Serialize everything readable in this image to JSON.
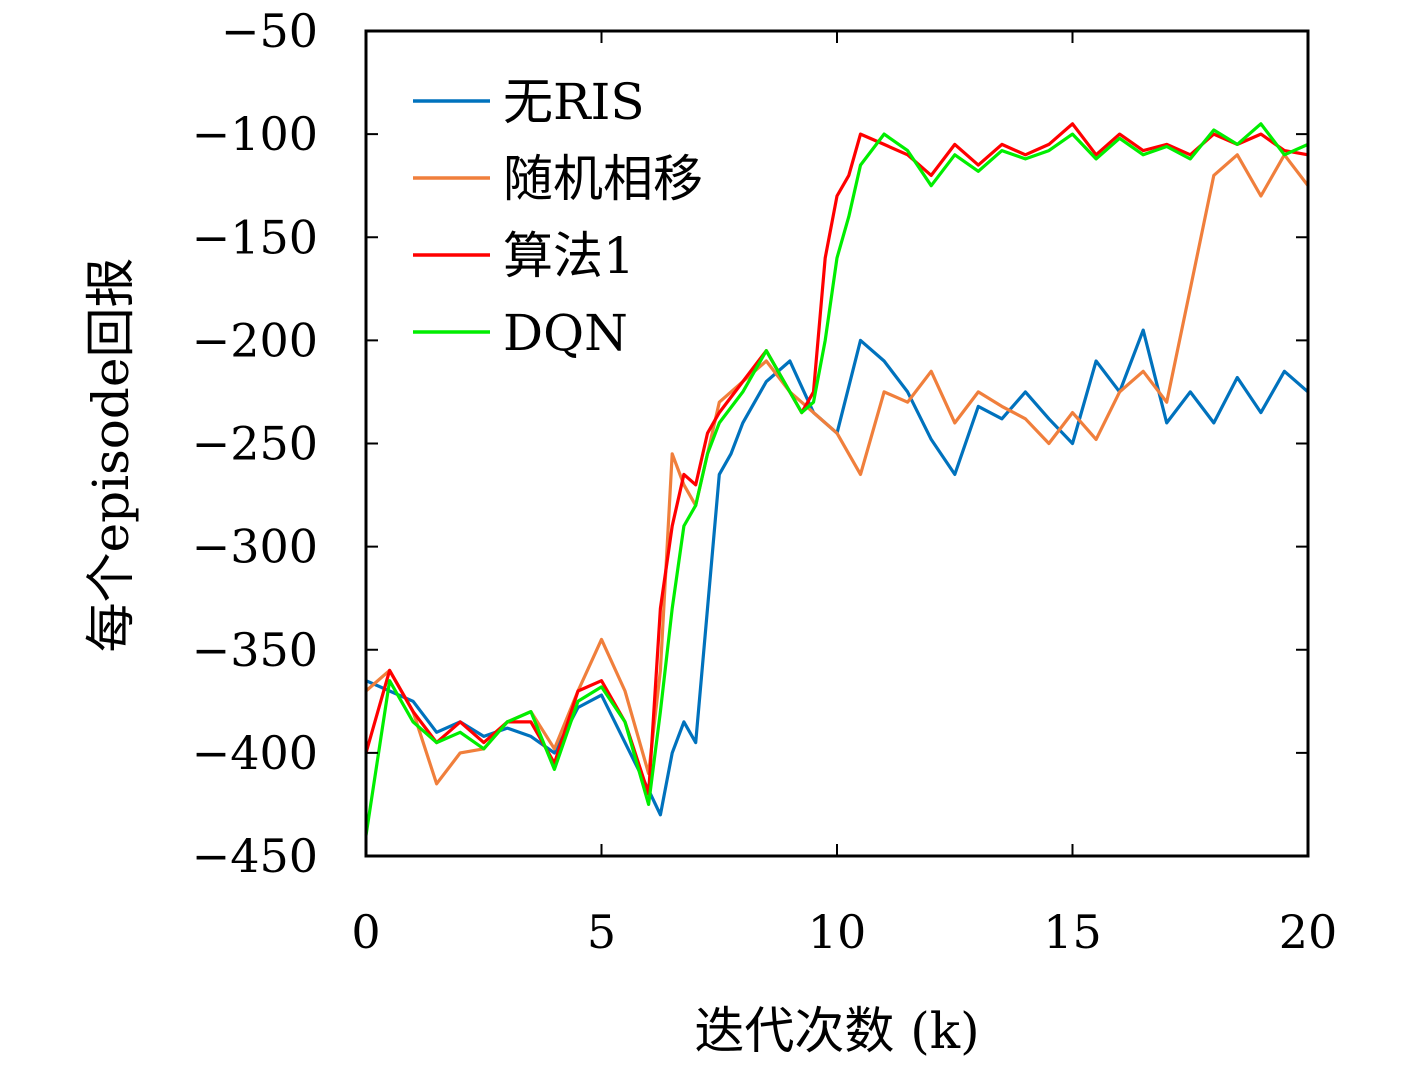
{
  "chart_data": {
    "type": "line",
    "xlabel": "迭代次数 (k)",
    "ylabel": "每个episode回报",
    "xlim": [
      0,
      20
    ],
    "ylim": [
      -450,
      -50
    ],
    "xticks": [
      0,
      5,
      10,
      15,
      20
    ],
    "yticks": [
      -50,
      -100,
      -150,
      -200,
      -250,
      -300,
      -350,
      -400,
      -450
    ],
    "xtick_labels": [
      "0",
      "5",
      "10",
      "15",
      "20"
    ],
    "ytick_labels": [
      "−50",
      "−100",
      "−150",
      "−200",
      "−250",
      "−300",
      "−350",
      "−400",
      "−450"
    ],
    "grid": false,
    "legend_position": "top-left",
    "series": [
      {
        "name": "无RIS",
        "color": "#0072BD",
        "x": [
          0,
          0.5,
          1,
          1.5,
          2,
          2.5,
          3,
          3.5,
          4,
          4.5,
          5,
          5.5,
          6,
          6.25,
          6.5,
          6.75,
          7,
          7.25,
          7.5,
          7.75,
          8,
          8.5,
          9,
          9.5,
          10,
          10.5,
          11,
          11.5,
          12,
          12.5,
          13,
          13.5,
          14,
          14.5,
          15,
          15.5,
          16,
          16.5,
          17,
          17.5,
          18,
          18.5,
          19,
          19.5,
          20
        ],
        "y": [
          -365,
          -370,
          -375,
          -390,
          -385,
          -392,
          -388,
          -392,
          -400,
          -378,
          -372,
          -395,
          -418,
          -430,
          -400,
          -385,
          -395,
          -330,
          -265,
          -255,
          -240,
          -220,
          -210,
          -235,
          -245,
          -200,
          -210,
          -225,
          -248,
          -265,
          -232,
          -238,
          -225,
          -238,
          -250,
          -210,
          -225,
          -195,
          -240,
          -225,
          -240,
          -218,
          -235,
          -215,
          -225
        ]
      },
      {
        "name": "随机相移",
        "color": "#F07F3C",
        "x": [
          0,
          0.5,
          1,
          1.5,
          2,
          2.5,
          3,
          3.5,
          4,
          4.5,
          5,
          5.5,
          6,
          6.25,
          6.5,
          6.75,
          7,
          7.5,
          8,
          8.5,
          9,
          9.5,
          10,
          10.5,
          11,
          11.5,
          12,
          12.5,
          13,
          13.5,
          14,
          14.5,
          15,
          15.5,
          16,
          16.5,
          17,
          17.5,
          18,
          18.5,
          19,
          19.5,
          20
        ],
        "y": [
          -370,
          -360,
          -380,
          -415,
          -400,
          -398,
          -385,
          -380,
          -398,
          -370,
          -345,
          -370,
          -410,
          -360,
          -255,
          -270,
          -280,
          -230,
          -220,
          -210,
          -225,
          -235,
          -245,
          -265,
          -225,
          -230,
          -215,
          -240,
          -225,
          -232,
          -238,
          -250,
          -235,
          -248,
          -225,
          -215,
          -230,
          -175,
          -120,
          -110,
          -130,
          -110,
          -125
        ]
      },
      {
        "name": "算法1",
        "color": "#FF0000",
        "x": [
          0,
          0.5,
          1,
          1.5,
          2,
          2.5,
          3,
          3.5,
          4,
          4.5,
          5,
          5.5,
          6,
          6.25,
          6.5,
          6.75,
          7,
          7.25,
          7.5,
          8,
          8.5,
          9,
          9.25,
          9.5,
          9.75,
          10,
          10.25,
          10.5,
          11,
          11.5,
          12,
          12.5,
          13,
          13.5,
          14,
          14.5,
          15,
          15.5,
          16,
          16.5,
          17,
          17.5,
          18,
          18.5,
          19,
          19.5,
          20
        ],
        "y": [
          -400,
          -360,
          -380,
          -395,
          -385,
          -395,
          -385,
          -385,
          -405,
          -370,
          -365,
          -385,
          -420,
          -330,
          -290,
          -265,
          -270,
          -245,
          -235,
          -220,
          -205,
          -225,
          -235,
          -225,
          -160,
          -130,
          -120,
          -100,
          -105,
          -110,
          -120,
          -105,
          -115,
          -105,
          -110,
          -105,
          -95,
          -110,
          -100,
          -108,
          -105,
          -110,
          -100,
          -105,
          -100,
          -108,
          -110
        ]
      },
      {
        "name": "DQN",
        "color": "#00EE00",
        "x": [
          0,
          0.5,
          1,
          1.5,
          2,
          2.5,
          3,
          3.5,
          4,
          4.5,
          5,
          5.5,
          6,
          6.25,
          6.5,
          6.75,
          7,
          7.25,
          7.5,
          8,
          8.5,
          9,
          9.25,
          9.5,
          9.75,
          10,
          10.25,
          10.5,
          11,
          11.5,
          12,
          12.5,
          13,
          13.5,
          14,
          14.5,
          15,
          15.5,
          16,
          16.5,
          17,
          17.5,
          18,
          18.5,
          19,
          19.5,
          20
        ],
        "y": [
          -440,
          -365,
          -385,
          -395,
          -390,
          -398,
          -385,
          -380,
          -408,
          -375,
          -368,
          -385,
          -425,
          -380,
          -330,
          -290,
          -280,
          -255,
          -240,
          -225,
          -205,
          -225,
          -235,
          -230,
          -200,
          -160,
          -140,
          -115,
          -100,
          -108,
          -125,
          -110,
          -118,
          -108,
          -112,
          -108,
          -100,
          -112,
          -102,
          -110,
          -106,
          -112,
          -98,
          -105,
          -95,
          -110,
          -105
        ]
      }
    ]
  }
}
